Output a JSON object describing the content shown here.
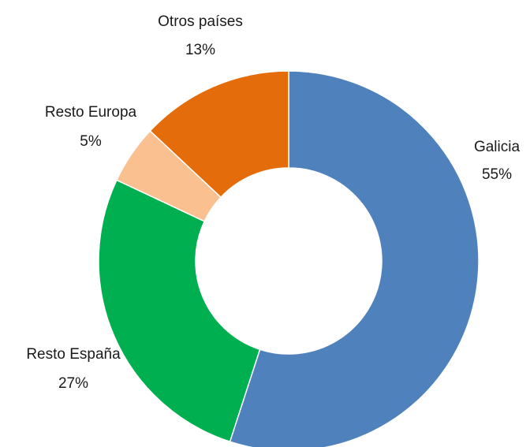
{
  "chart_data": {
    "type": "donut",
    "categories": [
      "Galicia",
      "Resto España",
      "Resto Europa",
      "Otros países"
    ],
    "values": [
      55,
      27,
      5,
      13
    ],
    "value_labels": [
      "55%",
      "27%",
      "5%",
      "13%"
    ],
    "colors": [
      "#4f81bd",
      "#00b050",
      "#fac090",
      "#e46c0a"
    ]
  }
}
